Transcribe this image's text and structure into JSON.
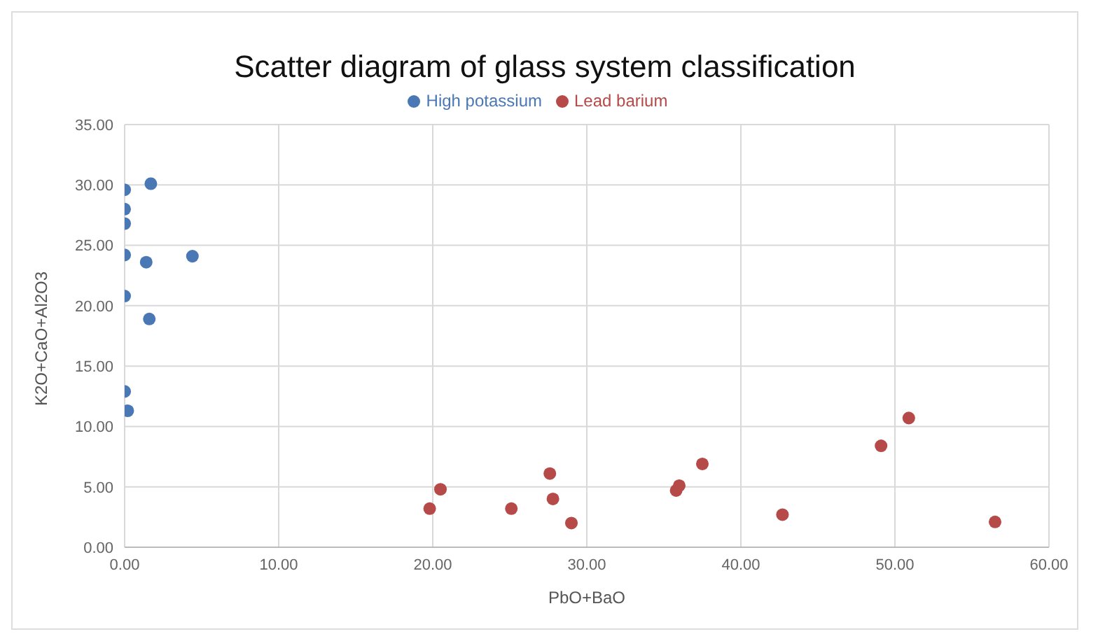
{
  "chart_data": {
    "type": "scatter",
    "title": "Scatter diagram of glass system classification",
    "xlabel": "PbO+BaO",
    "ylabel": "K2O+CaO+Al2O3",
    "series": [
      {
        "name": "High potassium",
        "color": "#4a78b5",
        "x": [
          0,
          1.7,
          0,
          0,
          0,
          1.4,
          4.4,
          0,
          1.6,
          0,
          0.2
        ],
        "values": [
          29.6,
          30.1,
          28.0,
          26.8,
          24.2,
          23.6,
          24.1,
          20.8,
          18.9,
          12.9,
          11.3
        ]
      },
      {
        "name": "Lead barium",
        "color": "#b54a48",
        "x": [
          19.8,
          20.5,
          25.1,
          27.6,
          27.8,
          29.0,
          35.8,
          36.0,
          37.5,
          42.7,
          49.1,
          50.9,
          56.5
        ],
        "values": [
          3.2,
          4.8,
          3.2,
          6.1,
          4.0,
          2.0,
          4.7,
          5.1,
          6.9,
          2.7,
          8.4,
          10.7,
          2.1
        ]
      }
    ],
    "xlim": [
      0,
      60
    ],
    "xticks": [
      {
        "value": 0,
        "label": "0.00"
      },
      {
        "value": 10,
        "label": "10.00"
      },
      {
        "value": 20,
        "label": "20.00"
      },
      {
        "value": 30,
        "label": "30.00"
      },
      {
        "value": 40,
        "label": "40.00"
      },
      {
        "value": 50,
        "label": "50.00"
      },
      {
        "value": 60,
        "label": "60.00"
      }
    ],
    "ylim": [
      0,
      35
    ],
    "yticks": [
      {
        "value": 0,
        "label": "0.00"
      },
      {
        "value": 5,
        "label": "5.00"
      },
      {
        "value": 10,
        "label": "10.00"
      },
      {
        "value": 15,
        "label": "15.00"
      },
      {
        "value": 20,
        "label": "20.00"
      },
      {
        "value": 25,
        "label": "25.00"
      },
      {
        "value": 30,
        "label": "30.00"
      },
      {
        "value": 35,
        "label": "35.00"
      }
    ],
    "grid": true,
    "legend": "top",
    "marker": "circle"
  }
}
